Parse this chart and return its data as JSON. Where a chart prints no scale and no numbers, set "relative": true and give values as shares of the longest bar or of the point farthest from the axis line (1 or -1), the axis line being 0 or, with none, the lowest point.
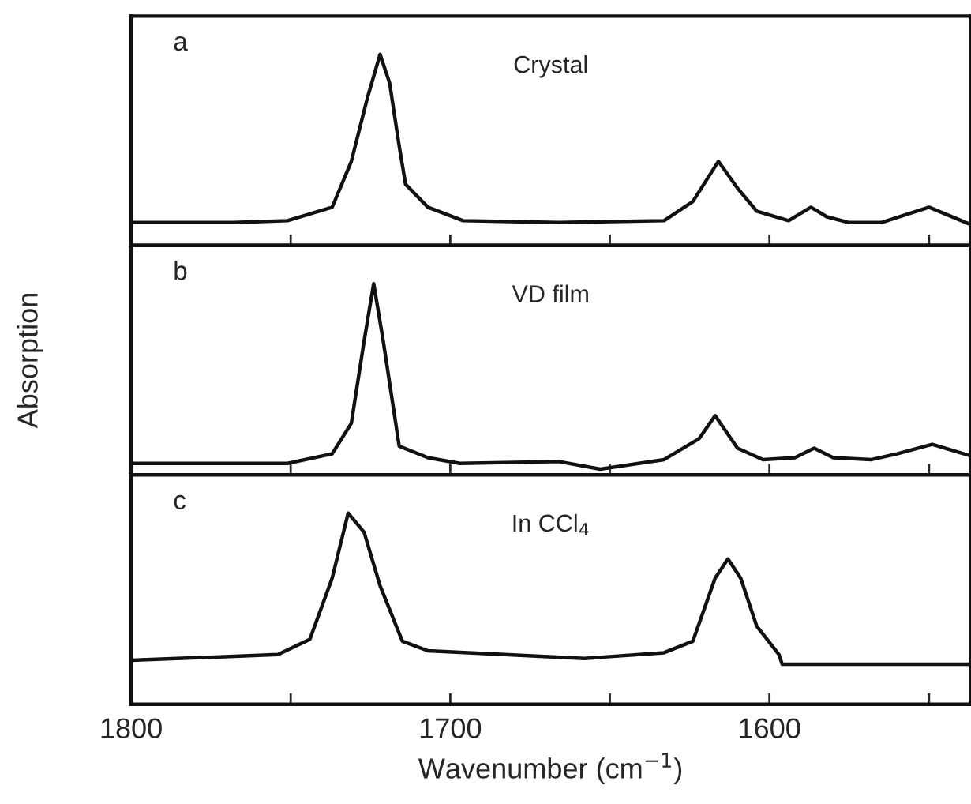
{
  "chart_data": [
    {
      "type": "line",
      "relative": true,
      "annotations": [
        "a",
        "Crystal"
      ],
      "xlim": [
        1800,
        1537
      ],
      "xticks": [
        1800,
        {
          "value": 1750,
          "label": null
        },
        1700,
        {
          "value": 1650,
          "label": null
        },
        1600,
        {
          "value": 1550,
          "label": null
        }
      ],
      "tick_labels": false,
      "grid": false,
      "legend": false,
      "series": [
        {
          "color": "#111111",
          "x": [
            1800,
            1768,
            1751,
            1737,
            1731,
            1726,
            1722,
            1719,
            1716,
            1714,
            1707,
            1696,
            1666,
            1633,
            1624,
            1616,
            1610,
            1604,
            1594,
            1587,
            1582,
            1575,
            1565,
            1550,
            1537
          ],
          "values": [
            0.12,
            0.12,
            0.13,
            0.2,
            0.44,
            0.77,
            1.0,
            0.85,
            0.52,
            0.32,
            0.2,
            0.13,
            0.12,
            0.13,
            0.23,
            0.44,
            0.3,
            0.18,
            0.13,
            0.2,
            0.15,
            0.12,
            0.12,
            0.2,
            0.11
          ]
        }
      ]
    },
    {
      "type": "line",
      "relative": true,
      "annotations": [
        "b",
        "VD film"
      ],
      "ylabel": "Absorption",
      "xlim": [
        1800,
        1537
      ],
      "xticks": [
        1800,
        {
          "value": 1750,
          "label": null
        },
        1700,
        {
          "value": 1650,
          "label": null
        },
        1600,
        {
          "value": 1550,
          "label": null
        }
      ],
      "tick_labels": false,
      "grid": false,
      "legend": false,
      "series": [
        {
          "color": "#111111",
          "x": [
            1800,
            1751,
            1737,
            1731,
            1727,
            1724,
            1721,
            1716,
            1707,
            1697,
            1666,
            1653,
            1633,
            1622,
            1617,
            1610,
            1602,
            1592,
            1586,
            1580,
            1568,
            1560,
            1549,
            1537
          ],
          "values": [
            0.06,
            0.06,
            0.11,
            0.27,
            0.7,
            1.0,
            0.7,
            0.15,
            0.09,
            0.06,
            0.07,
            0.03,
            0.08,
            0.19,
            0.31,
            0.14,
            0.08,
            0.09,
            0.14,
            0.09,
            0.08,
            0.11,
            0.16,
            0.1
          ]
        }
      ]
    },
    {
      "type": "line",
      "relative": true,
      "annotations": [
        "c",
        "In CCl$_{4}$"
      ],
      "xlabel": "Wavenumber (cm$^{−1}$)",
      "xlim": [
        1800,
        1537
      ],
      "xticks": [
        1800,
        {
          "value": 1750,
          "label": null
        },
        1700,
        {
          "value": 1650,
          "label": null
        },
        1600,
        {
          "value": 1550,
          "label": null
        }
      ],
      "tick_labels": "x",
      "grid": false,
      "legend": false,
      "series": [
        {
          "color": "#111111",
          "x": [
            1800,
            1754,
            1744,
            1737,
            1732,
            1727,
            1722,
            1715,
            1707,
            1683,
            1658,
            1633,
            1624,
            1617,
            1613,
            1609,
            1604,
            1597,
            1596,
            1537
          ],
          "values": [
            0.23,
            0.26,
            0.34,
            0.66,
            1.0,
            0.9,
            0.62,
            0.33,
            0.28,
            0.26,
            0.24,
            0.27,
            0.33,
            0.66,
            0.76,
            0.66,
            0.41,
            0.26,
            0.21,
            0.21
          ]
        }
      ]
    }
  ]
}
